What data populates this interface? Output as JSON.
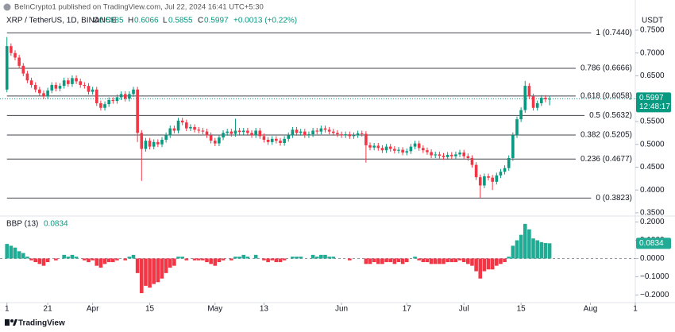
{
  "header": {
    "publisher": "BeInCrypto1 published on TradingView.com, Jul 22, 2024 16:41 UTC+5:30"
  },
  "chart_data": {
    "type": "candlestick",
    "title": "XRP / TetherUS, 1D, BINANCE",
    "currency": "USDT",
    "ohlc_labels": [
      "O",
      "H",
      "L",
      "C"
    ],
    "change": "+0.0013 (+0.22%)",
    "countdown": "12:48:17",
    "x": [
      0,
      1,
      2,
      3,
      4,
      5,
      6,
      7,
      8,
      9,
      10,
      11,
      12,
      13,
      14,
      15,
      16,
      17,
      18,
      19,
      20,
      21,
      22,
      23,
      24,
      25,
      26,
      27,
      28,
      29,
      30,
      31,
      32,
      33,
      34,
      35,
      36,
      37,
      38,
      39,
      40,
      41,
      42,
      43,
      44,
      45,
      46,
      47,
      48,
      49,
      50,
      51,
      52,
      53,
      54,
      55,
      56,
      57,
      58,
      59,
      60,
      61,
      62,
      63,
      64,
      65,
      66,
      67,
      68,
      69,
      70,
      71,
      72,
      73,
      74,
      75,
      76,
      77,
      78,
      79,
      80,
      81,
      82,
      83,
      84,
      85,
      86,
      87,
      88,
      89,
      90,
      91,
      92,
      93,
      94,
      95,
      96,
      97,
      98,
      99,
      100,
      101,
      102,
      103,
      104,
      105,
      106,
      107,
      108,
      109,
      110,
      111,
      112,
      113,
      114,
      115,
      116,
      117,
      118,
      119,
      120,
      121,
      122,
      123,
      124,
      125,
      126,
      127,
      128,
      129,
      130,
      131,
      132,
      133
    ],
    "xlim": [
      -1.7,
      154
    ],
    "xticks": [
      {
        "value": 0,
        "label": "1"
      },
      {
        "value": 10,
        "label": "21"
      },
      {
        "value": 21,
        "label": "Apr"
      },
      {
        "value": 35,
        "label": "15"
      },
      {
        "value": 51,
        "label": "May"
      },
      {
        "value": 63,
        "label": "13"
      },
      {
        "value": 82,
        "label": "Jun"
      },
      {
        "value": 98,
        "label": "17"
      },
      {
        "value": 112,
        "label": "Jul"
      },
      {
        "value": 126,
        "label": "15"
      },
      {
        "value": 143,
        "label": "Aug"
      },
      {
        "value": 154,
        "label": "1"
      }
    ],
    "open": [
      0.62,
      0.715,
      0.7,
      0.69,
      0.672,
      0.655,
      0.64,
      0.63,
      0.62,
      0.612,
      0.605,
      0.618,
      0.63,
      0.622,
      0.628,
      0.64,
      0.632,
      0.645,
      0.638,
      0.63,
      0.628,
      0.615,
      0.62,
      0.59,
      0.58,
      0.588,
      0.597,
      0.595,
      0.603,
      0.61,
      0.6,
      0.61,
      0.62,
      0.525,
      0.49,
      0.508,
      0.495,
      0.505,
      0.5,
      0.51,
      0.52,
      0.535,
      0.53,
      0.552,
      0.548,
      0.535,
      0.538,
      0.532,
      0.53,
      0.528,
      0.52,
      0.508,
      0.502,
      0.515,
      0.525,
      0.528,
      0.523,
      0.53,
      0.527,
      0.53,
      0.525,
      0.52,
      0.53,
      0.518,
      0.51,
      0.505,
      0.512,
      0.508,
      0.503,
      0.512,
      0.52,
      0.532,
      0.525,
      0.528,
      0.52,
      0.522,
      0.53,
      0.528,
      0.535,
      0.532,
      0.528,
      0.525,
      0.522,
      0.52,
      0.522,
      0.518,
      0.52,
      0.524,
      0.523,
      0.498,
      0.493,
      0.497,
      0.492,
      0.487,
      0.495,
      0.49,
      0.486,
      0.488,
      0.482,
      0.485,
      0.495,
      0.502,
      0.492,
      0.487,
      0.483,
      0.476,
      0.478,
      0.475,
      0.472,
      0.477,
      0.474,
      0.478,
      0.482,
      0.474,
      0.47,
      0.455,
      0.428,
      0.41,
      0.43,
      0.427,
      0.418,
      0.432,
      0.44,
      0.448,
      0.47,
      0.52,
      0.555,
      0.575,
      0.628,
      0.605,
      0.58,
      0.59,
      0.602,
      0.5985
    ],
    "high": [
      0.735,
      0.721,
      0.706,
      0.696,
      0.678,
      0.661,
      0.646,
      0.636,
      0.626,
      0.618,
      0.624,
      0.636,
      0.636,
      0.634,
      0.646,
      0.646,
      0.651,
      0.651,
      0.644,
      0.636,
      0.634,
      0.626,
      0.626,
      0.596,
      0.594,
      0.603,
      0.603,
      0.609,
      0.616,
      0.616,
      0.616,
      0.626,
      0.626,
      0.531,
      0.514,
      0.514,
      0.511,
      0.511,
      0.516,
      0.526,
      0.541,
      0.541,
      0.558,
      0.558,
      0.554,
      0.544,
      0.544,
      0.538,
      0.536,
      0.534,
      0.526,
      0.514,
      0.521,
      0.531,
      0.534,
      0.534,
      0.556,
      0.536,
      0.536,
      0.536,
      0.531,
      0.536,
      0.536,
      0.524,
      0.516,
      0.518,
      0.518,
      0.514,
      0.518,
      0.526,
      0.538,
      0.538,
      0.534,
      0.534,
      0.528,
      0.536,
      0.536,
      0.541,
      0.541,
      0.538,
      0.534,
      0.531,
      0.528,
      0.528,
      0.528,
      0.526,
      0.53,
      0.53,
      0.529,
      0.504,
      0.503,
      0.503,
      0.498,
      0.501,
      0.501,
      0.496,
      0.494,
      0.494,
      0.491,
      0.501,
      0.508,
      0.508,
      0.498,
      0.493,
      0.489,
      0.484,
      0.484,
      0.481,
      0.483,
      0.483,
      0.484,
      0.488,
      0.488,
      0.48,
      0.476,
      0.461,
      0.434,
      0.436,
      0.436,
      0.433,
      0.438,
      0.446,
      0.454,
      0.476,
      0.526,
      0.561,
      0.581,
      0.639,
      0.634,
      0.611,
      0.596,
      0.608,
      0.608,
      0.6066
    ],
    "low": [
      0.614,
      0.694,
      0.684,
      0.666,
      0.649,
      0.634,
      0.624,
      0.614,
      0.606,
      0.599,
      0.599,
      0.612,
      0.616,
      0.616,
      0.622,
      0.626,
      0.626,
      0.632,
      0.624,
      0.622,
      0.609,
      0.609,
      0.584,
      0.574,
      0.574,
      0.582,
      0.589,
      0.589,
      0.597,
      0.594,
      0.594,
      0.604,
      0.505,
      0.42,
      0.484,
      0.489,
      0.489,
      0.494,
      0.494,
      0.504,
      0.514,
      0.524,
      0.524,
      0.542,
      0.529,
      0.529,
      0.526,
      0.524,
      0.522,
      0.514,
      0.502,
      0.496,
      0.496,
      0.509,
      0.519,
      0.517,
      0.517,
      0.521,
      0.521,
      0.519,
      0.514,
      0.514,
      0.512,
      0.504,
      0.499,
      0.499,
      0.502,
      0.497,
      0.497,
      0.506,
      0.514,
      0.519,
      0.519,
      0.514,
      0.514,
      0.516,
      0.522,
      0.522,
      0.526,
      0.522,
      0.519,
      0.516,
      0.514,
      0.514,
      0.512,
      0.512,
      0.514,
      0.517,
      0.46,
      0.487,
      0.487,
      0.486,
      0.481,
      0.481,
      0.484,
      0.48,
      0.48,
      0.476,
      0.476,
      0.479,
      0.489,
      0.486,
      0.481,
      0.477,
      0.47,
      0.47,
      0.469,
      0.466,
      0.466,
      0.468,
      0.468,
      0.472,
      0.468,
      0.464,
      0.449,
      0.422,
      0.383,
      0.404,
      0.421,
      0.4,
      0.412,
      0.426,
      0.434,
      0.442,
      0.464,
      0.514,
      0.549,
      0.569,
      0.599,
      0.574,
      0.574,
      0.584,
      0.592,
      0.5855
    ],
    "close": [
      0.715,
      0.7,
      0.69,
      0.672,
      0.655,
      0.64,
      0.63,
      0.62,
      0.612,
      0.605,
      0.618,
      0.63,
      0.622,
      0.628,
      0.64,
      0.632,
      0.645,
      0.638,
      0.63,
      0.628,
      0.615,
      0.62,
      0.59,
      0.58,
      0.588,
      0.597,
      0.595,
      0.603,
      0.61,
      0.6,
      0.61,
      0.62,
      0.525,
      0.49,
      0.508,
      0.495,
      0.505,
      0.5,
      0.51,
      0.52,
      0.535,
      0.53,
      0.552,
      0.548,
      0.535,
      0.538,
      0.532,
      0.53,
      0.528,
      0.52,
      0.508,
      0.502,
      0.515,
      0.525,
      0.528,
      0.523,
      0.53,
      0.527,
      0.53,
      0.525,
      0.52,
      0.53,
      0.518,
      0.51,
      0.505,
      0.512,
      0.508,
      0.503,
      0.512,
      0.52,
      0.532,
      0.525,
      0.528,
      0.52,
      0.522,
      0.53,
      0.528,
      0.535,
      0.532,
      0.528,
      0.525,
      0.522,
      0.52,
      0.522,
      0.518,
      0.52,
      0.524,
      0.523,
      0.498,
      0.493,
      0.497,
      0.492,
      0.487,
      0.495,
      0.49,
      0.486,
      0.488,
      0.482,
      0.485,
      0.495,
      0.502,
      0.492,
      0.487,
      0.483,
      0.476,
      0.478,
      0.475,
      0.472,
      0.477,
      0.474,
      0.478,
      0.482,
      0.474,
      0.47,
      0.455,
      0.428,
      0.41,
      0.43,
      0.427,
      0.418,
      0.432,
      0.44,
      0.448,
      0.47,
      0.52,
      0.555,
      0.575,
      0.628,
      0.605,
      0.58,
      0.59,
      0.602,
      0.5985,
      0.5997
    ],
    "up_color": "#089981",
    "down_color": "#f23645",
    "ylim": [
      0.343,
      0.7865
    ],
    "yticks": [
      {
        "value": 0.35,
        "label": "0.3500"
      },
      {
        "value": 0.4,
        "label": "0.4000"
      },
      {
        "value": 0.45,
        "label": "0.4500"
      },
      {
        "value": 0.5,
        "label": "0.5000"
      },
      {
        "value": 0.55,
        "label": "0.5500"
      },
      {
        "value": 0.6,
        "label": "0.6000"
      },
      {
        "value": 0.65,
        "label": "0.6500"
      },
      {
        "value": 0.7,
        "label": "0.7000"
      },
      {
        "value": 0.75,
        "label": "0.7500"
      }
    ],
    "fib_color": "#434651",
    "fib_levels": [
      {
        "value": 0.744,
        "label": "1 (0.7440)"
      },
      {
        "value": 0.6666,
        "label": "0.786 (0.6666)"
      },
      {
        "value": 0.6058,
        "label": "0.618 (0.6058)"
      },
      {
        "value": 0.5632,
        "label": "0.5 (0.5632)"
      },
      {
        "value": 0.5205,
        "label": "0.382 (0.5205)"
      },
      {
        "value": 0.4677,
        "label": "0.236 (0.4677)"
      },
      {
        "value": 0.3823,
        "label": "0 (0.3823)"
      }
    ],
    "indicator": {
      "type": "bar",
      "title": "BBP (13)",
      "positive_color": "#22ab94",
      "negative_color": "#f23645",
      "ylim": [
        -0.242,
        0.233
      ],
      "yticks": [
        {
          "value": 0.2,
          "label": "0.2000"
        },
        {
          "value": 0.1,
          "label": "0.1000"
        },
        {
          "value": 0,
          "label": "0.0000"
        },
        {
          "value": -0.1,
          "label": "−0.1000"
        },
        {
          "value": -0.2,
          "label": "−0.2000"
        }
      ],
      "values": [
        0.08,
        0.07,
        0.06,
        0.04,
        0.03,
        0.01,
        -0.01,
        -0.02,
        -0.03,
        -0.04,
        -0.02,
        0.0,
        -0.01,
        0.0,
        0.02,
        0.01,
        0.02,
        0.01,
        0.0,
        -0.01,
        -0.02,
        -0.01,
        -0.04,
        -0.05,
        -0.03,
        -0.02,
        -0.02,
        -0.01,
        0.0,
        -0.01,
        0.01,
        0.02,
        -0.08,
        -0.19,
        -0.15,
        -0.16,
        -0.14,
        -0.13,
        -0.11,
        -0.08,
        -0.05,
        -0.04,
        0.01,
        0.01,
        -0.01,
        0.0,
        -0.01,
        -0.01,
        -0.01,
        -0.02,
        -0.03,
        -0.04,
        -0.02,
        -0.01,
        0.0,
        -0.01,
        0.01,
        0.01,
        0.02,
        0.01,
        0.0,
        0.02,
        0.0,
        -0.01,
        -0.02,
        -0.01,
        -0.02,
        -0.02,
        -0.01,
        0.0,
        0.01,
        0.01,
        0.01,
        0.0,
        0.0,
        0.02,
        0.01,
        0.02,
        0.02,
        0.01,
        0.01,
        0.0,
        0.0,
        0.0,
        -0.01,
        0.0,
        0.0,
        0.0,
        -0.03,
        -0.03,
        -0.02,
        -0.03,
        -0.03,
        -0.02,
        -0.02,
        -0.03,
        -0.02,
        -0.03,
        -0.02,
        0.0,
        0.01,
        -0.01,
        -0.02,
        -0.02,
        -0.03,
        -0.03,
        -0.03,
        -0.03,
        -0.02,
        -0.02,
        -0.02,
        -0.01,
        -0.02,
        -0.03,
        -0.04,
        -0.07,
        -0.11,
        -0.07,
        -0.06,
        -0.06,
        -0.04,
        -0.03,
        -0.02,
        0.01,
        0.07,
        0.1,
        0.13,
        0.19,
        0.16,
        0.11,
        0.1,
        0.09,
        0.085,
        0.0834
      ]
    }
  },
  "footer": {
    "brand": "TradingView"
  }
}
